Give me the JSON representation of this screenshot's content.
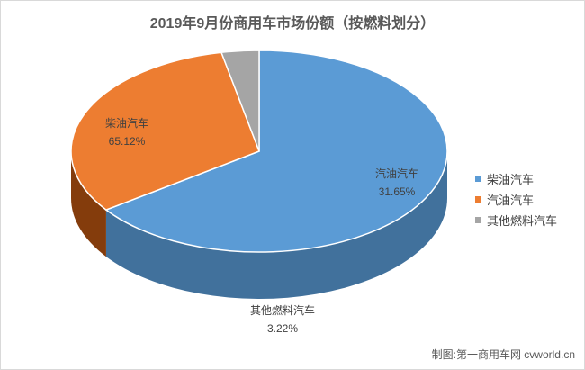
{
  "chart_data": {
    "type": "pie",
    "title": "2019年9月份商用车市场份额（按燃料划分）",
    "slices": [
      {
        "label": "柴油汽车",
        "value": 65.12,
        "value_text": "65.12%",
        "color": "#5b9bd5",
        "side_color": "#41719c"
      },
      {
        "label": "汽油汽车",
        "value": 31.65,
        "value_text": "31.65%",
        "color": "#ed7d31",
        "side_color": "#843c0c"
      },
      {
        "label": "其他燃料汽车",
        "value": 3.22,
        "value_text": "3.22%",
        "color": "#a5a5a5",
        "side_color": "#595959"
      }
    ],
    "legend_position": "right",
    "style": "3d-pie"
  },
  "credit": "制图:第一商用车网 cvworld.cn"
}
